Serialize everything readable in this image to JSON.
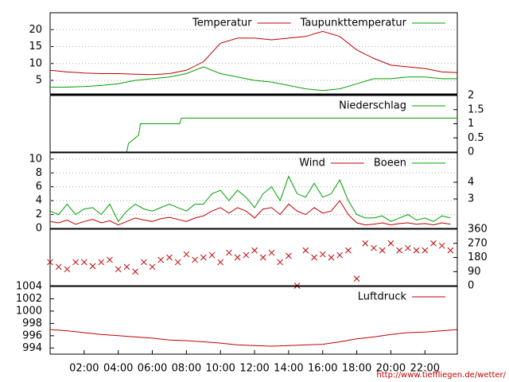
{
  "chart_data": [
    {
      "type": "line",
      "xlim": [
        0,
        23.9
      ],
      "ylim": [
        1,
        25
      ],
      "yticks": [
        5,
        10,
        15,
        20
      ],
      "grid": true,
      "x": [
        0,
        1,
        2,
        3,
        4,
        5,
        6,
        7,
        8,
        9,
        10,
        11,
        12,
        13,
        14,
        15,
        16,
        17,
        18,
        19,
        20,
        21,
        22,
        23,
        23.9
      ],
      "series": [
        {
          "name": "Temperatur",
          "color": "#c00000",
          "values": [
            8,
            7.5,
            7.2,
            7,
            7,
            6.8,
            6.7,
            7,
            8,
            10.5,
            16,
            17.5,
            17.5,
            17,
            17.5,
            18,
            19.5,
            18,
            14,
            11.5,
            9.5,
            9,
            8.5,
            7.5,
            7.3
          ]
        },
        {
          "name": "Taupunkttemperatur",
          "color": "#00a000",
          "values": [
            3,
            3,
            3.2,
            3.5,
            4,
            5,
            5.5,
            6,
            7,
            9,
            7,
            6,
            5,
            4.5,
            3.5,
            2.5,
            2,
            2.5,
            4,
            5.5,
            5.5,
            6,
            6,
            5.5,
            5.5
          ]
        }
      ]
    },
    {
      "type": "line",
      "xlim": [
        0,
        23.9
      ],
      "y2lim": [
        0,
        2
      ],
      "y2ticks": [
        0,
        0.5,
        1,
        1.5,
        2
      ],
      "grid": false,
      "x": [
        0,
        4.5,
        4.6,
        5.2,
        5.3,
        7.6,
        7.7,
        23.9
      ],
      "series": [
        {
          "name": "Niederschlag",
          "color": "#00a000",
          "axis": "y2",
          "values": [
            0,
            0,
            0.3,
            0.6,
            1.0,
            1.0,
            1.2,
            1.2
          ]
        }
      ]
    },
    {
      "type": "line",
      "xlim": [
        0,
        23.9
      ],
      "ylim": [
        0,
        10.9
      ],
      "yticks": [
        0,
        2,
        4,
        6,
        8,
        10
      ],
      "y2lim": [
        1.24,
        5.76
      ],
      "y2ticks": [
        3,
        4
      ],
      "grid": true,
      "x": [
        0,
        0.5,
        1,
        1.5,
        2,
        2.5,
        3,
        3.5,
        4,
        4.5,
        5,
        5.5,
        6,
        6.5,
        7,
        7.5,
        8,
        8.5,
        9,
        9.5,
        10,
        10.5,
        11,
        11.5,
        12,
        12.5,
        13,
        13.5,
        14,
        14.5,
        15,
        15.5,
        16,
        16.5,
        17,
        17.5,
        18,
        18.5,
        19,
        19.5,
        20,
        20.5,
        21,
        21.5,
        22,
        22.5,
        23,
        23.5
      ],
      "series": [
        {
          "name": "Wind",
          "color": "#c00000",
          "values": [
            1.0,
            0.8,
            1.2,
            0.6,
            1.0,
            1.3,
            0.8,
            1.1,
            0.5,
            1.0,
            1.5,
            1.2,
            1.0,
            1.4,
            1.6,
            1.3,
            1.0,
            1.5,
            1.8,
            2.5,
            3.0,
            2.2,
            3.0,
            2.5,
            1.5,
            2.8,
            3.0,
            2.0,
            3.5,
            2.5,
            2.0,
            3.0,
            2.2,
            2.5,
            4.0,
            2.0,
            0.8,
            0.5,
            0.6,
            0.8,
            0.5,
            0.7,
            0.8,
            0.6,
            0.7,
            0.5,
            0.8,
            0.6
          ]
        },
        {
          "name": "Boeen",
          "color": "#00a000",
          "values": [
            2.5,
            2,
            3.5,
            2,
            2.8,
            3,
            2,
            3.5,
            1,
            2.5,
            3.5,
            2.8,
            2.5,
            3,
            3.5,
            3,
            2.5,
            3.5,
            3.5,
            5,
            5.5,
            4,
            5.5,
            4.5,
            3,
            5,
            6,
            4,
            7.5,
            5,
            4.5,
            6.5,
            4.5,
            5,
            7,
            4,
            2,
            1.5,
            1.5,
            1.8,
            1,
            1.5,
            2,
            1.2,
            1.5,
            1,
            1.8,
            1.5
          ]
        }
      ]
    },
    {
      "type": "scatter",
      "xlim": [
        0,
        23.9
      ],
      "y2lim": [
        0,
        360
      ],
      "y2ticks": [
        0,
        90,
        180,
        270,
        360
      ],
      "grid": false,
      "x": [
        0,
        0.5,
        1,
        1.5,
        2,
        2.5,
        3,
        3.5,
        4,
        4.5,
        5,
        5.5,
        6,
        6.5,
        7,
        7.5,
        8,
        8.5,
        9,
        9.5,
        10,
        10.5,
        11,
        11.5,
        12,
        12.5,
        13,
        13.5,
        14,
        14.5,
        15,
        15.5,
        16,
        16.5,
        17,
        17.5,
        18,
        18.5,
        19,
        19.5,
        20,
        20.5,
        21,
        21.5,
        22,
        22.5,
        23,
        23.5
      ],
      "series": [
        {
          "color": "#c00000",
          "axis": "y2",
          "values": [
            150,
            120,
            105,
            150,
            150,
            125,
            150,
            165,
            105,
            120,
            90,
            150,
            120,
            165,
            180,
            150,
            200,
            165,
            180,
            195,
            150,
            210,
            180,
            195,
            225,
            180,
            210,
            150,
            190,
            0,
            225,
            180,
            200,
            180,
            195,
            225,
            45,
            270,
            240,
            225,
            270,
            225,
            240,
            225,
            225,
            270,
            255,
            225
          ]
        }
      ]
    },
    {
      "type": "line",
      "xlim": [
        0,
        23.9
      ],
      "ylim": [
        993,
        1004
      ],
      "yticks": [
        994,
        996,
        998,
        1000,
        1002,
        1004
      ],
      "grid": false,
      "x": [
        0,
        1,
        2,
        3,
        4,
        5,
        6,
        7,
        8,
        9,
        10,
        11,
        12,
        13,
        14,
        15,
        16,
        17,
        18,
        19,
        20,
        21,
        22,
        23,
        23.9
      ],
      "xticks": [
        {
          "value": 2,
          "label": "02:00"
        },
        {
          "value": 4,
          "label": "04:00"
        },
        {
          "value": 6,
          "label": "06:00"
        },
        {
          "value": 8,
          "label": "08:00"
        },
        {
          "value": 10,
          "label": "10:00"
        },
        {
          "value": 12,
          "label": "12:00"
        },
        {
          "value": 14,
          "label": "14:00"
        },
        {
          "value": 16,
          "label": "16:00"
        },
        {
          "value": 18,
          "label": "18:00"
        },
        {
          "value": 20,
          "label": "20:00"
        },
        {
          "value": 22,
          "label": "22:00"
        }
      ],
      "series": [
        {
          "name": "Luftdruck",
          "color": "#c00000",
          "values": [
            997,
            996.8,
            996.5,
            996.2,
            996,
            995.8,
            995.6,
            995.3,
            995.2,
            995,
            994.8,
            994.5,
            994.4,
            994.3,
            994.4,
            994.5,
            994.6,
            995,
            995.5,
            995.8,
            996.2,
            996.5,
            996.6,
            996.8,
            997
          ]
        }
      ]
    }
  ],
  "footer": "http://www.tieffliegen.de/wetter/"
}
